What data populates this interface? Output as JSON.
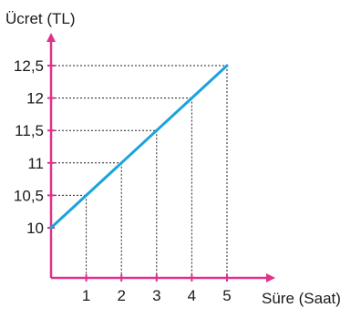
{
  "chart_data": {
    "type": "line",
    "ylabel": "Ücret (TL)",
    "xlabel": "Süre (Saat)",
    "x": [
      0,
      1,
      2,
      3,
      4,
      5
    ],
    "series": [
      {
        "values": [
          10,
          10.5,
          11,
          11.5,
          12,
          12.5
        ]
      }
    ],
    "x_ticks": [
      1,
      2,
      3,
      4,
      5
    ],
    "x_tick_labels": [
      "1",
      "2",
      "3",
      "4",
      "5"
    ],
    "y_ticks": [
      10,
      10.5,
      11,
      11.5,
      12,
      12.5
    ],
    "y_tick_labels": [
      "10",
      "10,5",
      "11",
      "11,5",
      "12",
      "12,5"
    ],
    "xlim": [
      0,
      5
    ],
    "ylim": [
      10,
      12.5
    ],
    "guide_lines": "dotted",
    "colors": {
      "axis": "#e0318c",
      "line": "#1aa3dc",
      "guide": "#222222",
      "text": "#1a1a1a"
    }
  }
}
